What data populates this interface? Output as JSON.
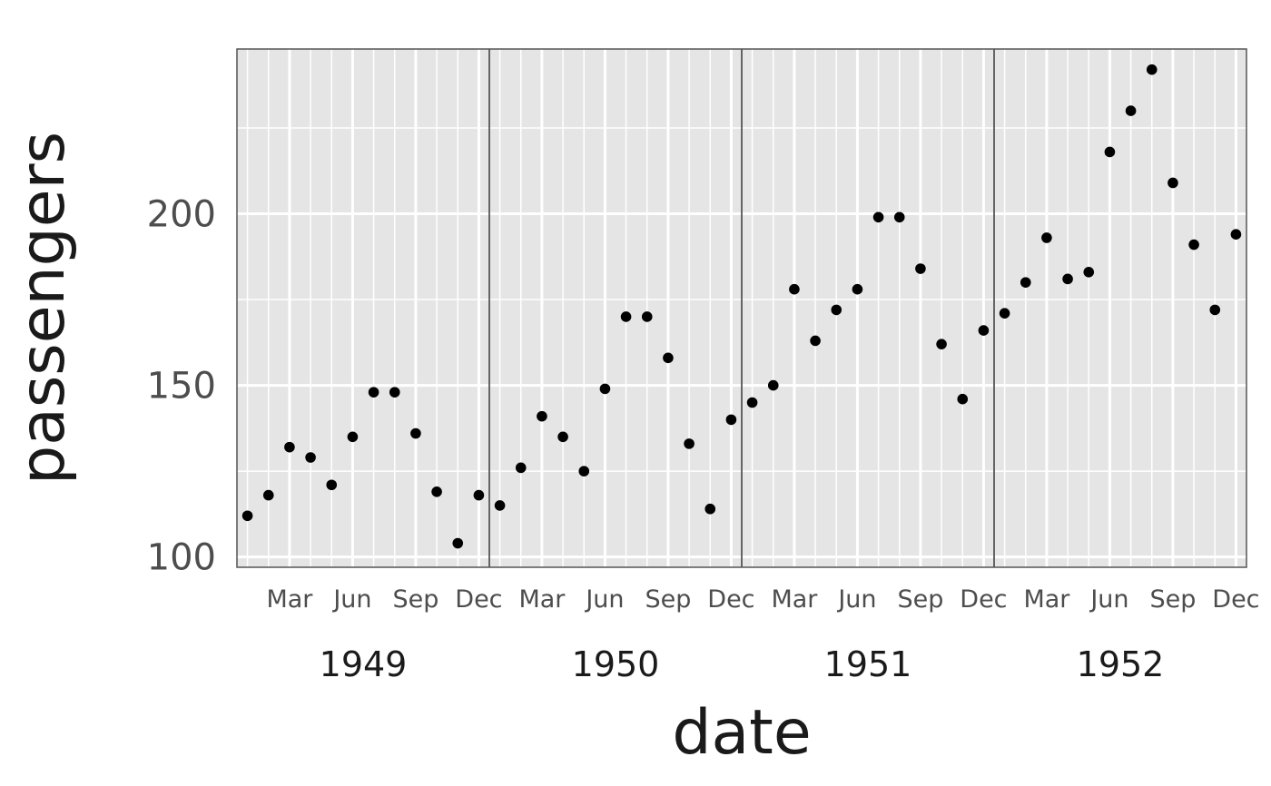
{
  "chart_data": {
    "type": "scatter",
    "xlabel": "date",
    "ylabel": "passengers",
    "x_unit": "month",
    "year_labels": [
      "1949",
      "1950",
      "1951",
      "1952"
    ],
    "month_tick_labels": [
      "Mar",
      "Jun",
      "Sep",
      "Dec"
    ],
    "yticks": [
      100,
      150,
      200
    ],
    "ylim": [
      97,
      248
    ],
    "xlim": [
      "1948-12-16",
      "1952-12-16"
    ],
    "grid": true,
    "series": [
      {
        "values": [
          {
            "x": "1949-01",
            "y": 112
          },
          {
            "x": "1949-02",
            "y": 118
          },
          {
            "x": "1949-03",
            "y": 132
          },
          {
            "x": "1949-04",
            "y": 129
          },
          {
            "x": "1949-05",
            "y": 121
          },
          {
            "x": "1949-06",
            "y": 135
          },
          {
            "x": "1949-07",
            "y": 148
          },
          {
            "x": "1949-08",
            "y": 148
          },
          {
            "x": "1949-09",
            "y": 136
          },
          {
            "x": "1949-10",
            "y": 119
          },
          {
            "x": "1949-11",
            "y": 104
          },
          {
            "x": "1949-12",
            "y": 118
          },
          {
            "x": "1950-01",
            "y": 115
          },
          {
            "x": "1950-02",
            "y": 126
          },
          {
            "x": "1950-03",
            "y": 141
          },
          {
            "x": "1950-04",
            "y": 135
          },
          {
            "x": "1950-05",
            "y": 125
          },
          {
            "x": "1950-06",
            "y": 149
          },
          {
            "x": "1950-07",
            "y": 170
          },
          {
            "x": "1950-08",
            "y": 170
          },
          {
            "x": "1950-09",
            "y": 158
          },
          {
            "x": "1950-10",
            "y": 133
          },
          {
            "x": "1950-11",
            "y": 114
          },
          {
            "x": "1950-12",
            "y": 140
          },
          {
            "x": "1951-01",
            "y": 145
          },
          {
            "x": "1951-02",
            "y": 150
          },
          {
            "x": "1951-03",
            "y": 178
          },
          {
            "x": "1951-04",
            "y": 163
          },
          {
            "x": "1951-05",
            "y": 172
          },
          {
            "x": "1951-06",
            "y": 178
          },
          {
            "x": "1951-07",
            "y": 199
          },
          {
            "x": "1951-08",
            "y": 199
          },
          {
            "x": "1951-09",
            "y": 184
          },
          {
            "x": "1951-10",
            "y": 162
          },
          {
            "x": "1951-11",
            "y": 146
          },
          {
            "x": "1951-12",
            "y": 166
          },
          {
            "x": "1952-01",
            "y": 171
          },
          {
            "x": "1952-02",
            "y": 180
          },
          {
            "x": "1952-03",
            "y": 193
          },
          {
            "x": "1952-04",
            "y": 181
          },
          {
            "x": "1952-05",
            "y": 183
          },
          {
            "x": "1952-06",
            "y": 218
          },
          {
            "x": "1952-07",
            "y": 230
          },
          {
            "x": "1952-08",
            "y": 242
          },
          {
            "x": "1952-09",
            "y": 209
          },
          {
            "x": "1952-10",
            "y": 191
          },
          {
            "x": "1952-11",
            "y": 172
          },
          {
            "x": "1952-12",
            "y": 194
          }
        ]
      }
    ],
    "colors": {
      "panel_background": "#e5e5e5",
      "grid": "#ffffff",
      "year_separator": "#555555",
      "point": "#000000"
    }
  }
}
